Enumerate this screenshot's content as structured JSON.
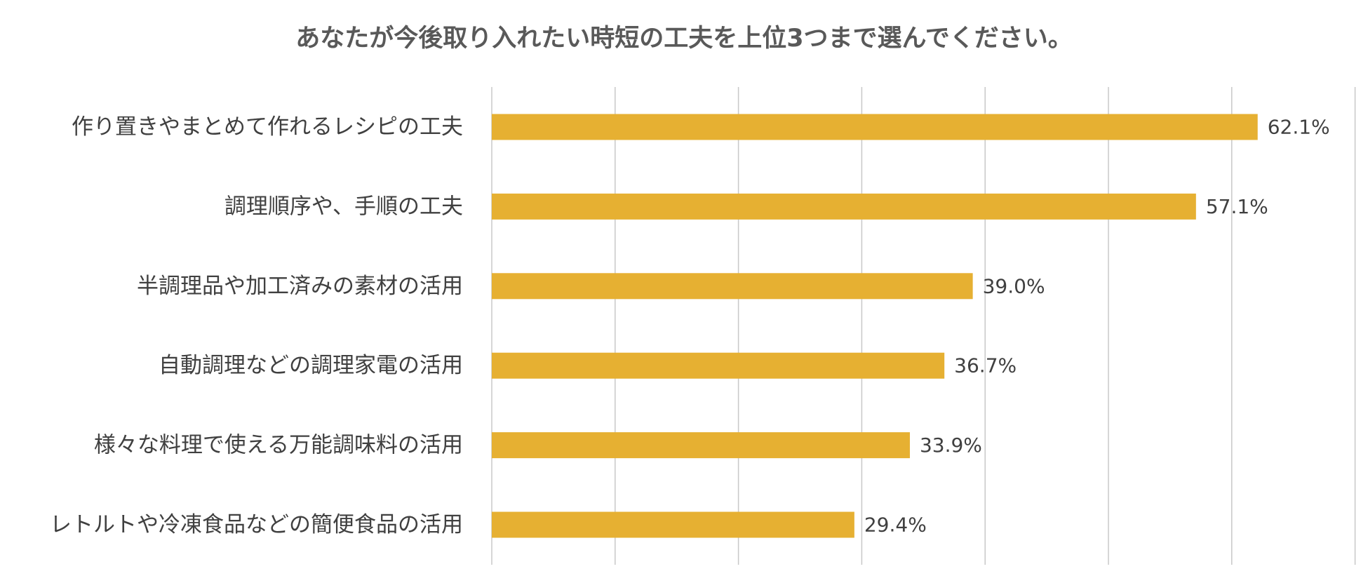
{
  "chart_data": {
    "type": "bar",
    "orientation": "horizontal",
    "title": "あなたが今後取り入れたい時短の工夫を上位3つまで選んでください。",
    "categories": [
      "作り置きやまとめて作れるレシピの工夫",
      "調理順序や、手順の工夫",
      "半調理品や加工済みの素材の活用",
      "自動調理などの調理家電の活用",
      "様々な料理で使える万能調味料の活用",
      "レトルトや冷凍食品などの簡便食品の活用"
    ],
    "values": [
      62.1,
      57.1,
      39.0,
      36.7,
      33.9,
      29.4
    ],
    "data_labels": [
      "62.1%",
      "57.1%",
      "39.0%",
      "36.7%",
      "33.9%",
      "29.4%"
    ],
    "xlim": [
      0,
      70
    ],
    "x_gridline_step": 10,
    "grid": true,
    "legend": "none",
    "colors": {
      "bar": "#E6B032",
      "gridline": "#C8C8C8",
      "text": "#404040",
      "title": "#595959"
    }
  }
}
